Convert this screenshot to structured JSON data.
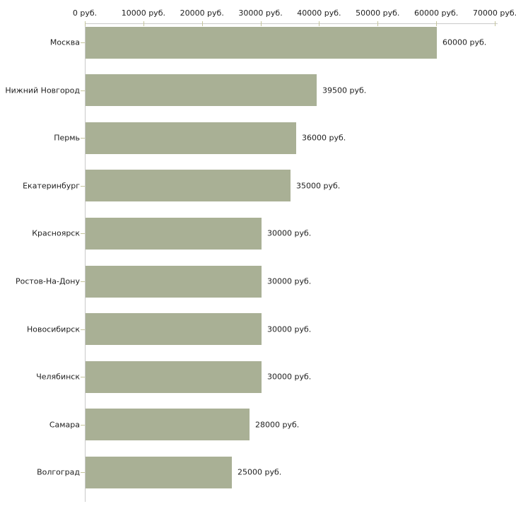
{
  "chart_data": {
    "type": "bar",
    "orientation": "horizontal",
    "title": "",
    "xlabel": "",
    "ylabel": "",
    "categories": [
      "Москва",
      "Нижний Новгород",
      "Пермь",
      "Екатеринбург",
      "Красноярск",
      "Ростов-На-Дону",
      "Новосибирск",
      "Челябинск",
      "Самара",
      "Волгоград"
    ],
    "values": [
      60000,
      39500,
      36000,
      35000,
      30000,
      30000,
      30000,
      30000,
      28000,
      25000
    ],
    "value_labels": [
      "60000 руб.",
      "39500 руб.",
      "36000 руб.",
      "35000 руб.",
      "30000 руб.",
      "30000 руб.",
      "30000 руб.",
      "30000 руб.",
      "28000 руб.",
      "25000 руб."
    ],
    "xlim": [
      0,
      70000
    ],
    "x_ticks": [
      0,
      10000,
      20000,
      30000,
      40000,
      50000,
      60000,
      70000
    ],
    "x_tick_labels": [
      "0 руб.",
      "10000 руб.",
      "20000 руб.",
      "30000 руб.",
      "40000 руб.",
      "50000 руб.",
      "60000 руб.",
      "70000 руб."
    ],
    "x_axis_position": "top",
    "grid": false,
    "legend": "none",
    "colors": {
      "bar_fill": "#a9b095",
      "axis_line": "#c9c9c9",
      "tick_mark": "#c5c59c",
      "text": "#1e1e1e",
      "background": "#ffffff"
    }
  }
}
